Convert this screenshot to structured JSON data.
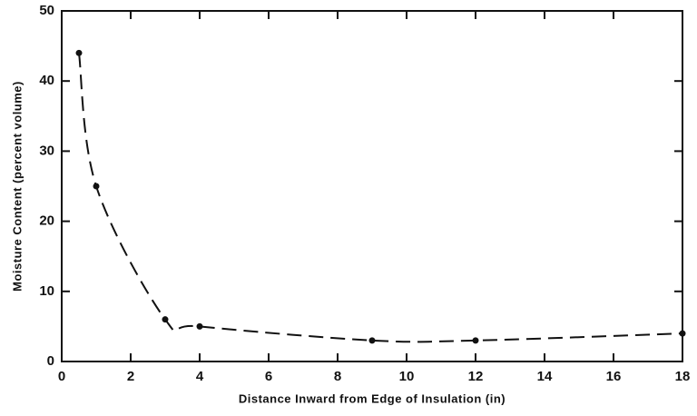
{
  "chart_data": {
    "type": "scatter",
    "x_label": "Distance Inward from Edge of Insulation (in)",
    "y_label": "Moisture Content (percent volume)",
    "x": [
      0.5,
      1,
      3,
      4,
      9,
      12,
      18
    ],
    "values": [
      44,
      25,
      6,
      5,
      3,
      3,
      4
    ],
    "color": "#111111",
    "line_style": "dashed",
    "xlim": [
      0,
      18
    ],
    "xticks": [
      0,
      2,
      4,
      6,
      8,
      10,
      12,
      14,
      16,
      18
    ],
    "ylim": [
      0,
      50
    ],
    "yticks": [
      0,
      10,
      20,
      30,
      40,
      50
    ]
  }
}
